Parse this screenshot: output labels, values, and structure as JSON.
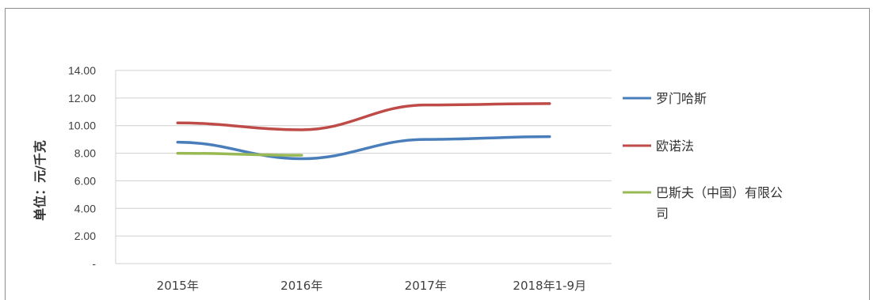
{
  "chart_data": {
    "type": "line",
    "title": "",
    "xlabel": "",
    "ylabel": "单位：元/千克",
    "categories": [
      "2015年",
      "2016年",
      "2017年",
      "2018年1-9月"
    ],
    "ylim": [
      0,
      14
    ],
    "yticks": [
      "14.00",
      "12.00",
      "10.00",
      "8.00",
      "6.00",
      "4.00",
      "2.00",
      "-"
    ],
    "grid": true,
    "legend_position": "right",
    "series": [
      {
        "name": "罗门哈斯",
        "color": "#4a7ebb",
        "values": [
          8.8,
          7.6,
          9.0,
          9.2
        ]
      },
      {
        "name": "欧诺法",
        "color": "#be4b48",
        "values": [
          10.2,
          9.7,
          11.5,
          11.6
        ]
      },
      {
        "name": "巴斯夫（中国）有限公司",
        "color": "#98b954",
        "values": [
          8.0,
          7.85,
          null,
          null
        ]
      }
    ]
  },
  "legend": {
    "item0": "罗门哈斯",
    "item1": "欧诺法",
    "item2_line1": "巴斯夫（中国）有限公",
    "item2_line2": "司"
  }
}
